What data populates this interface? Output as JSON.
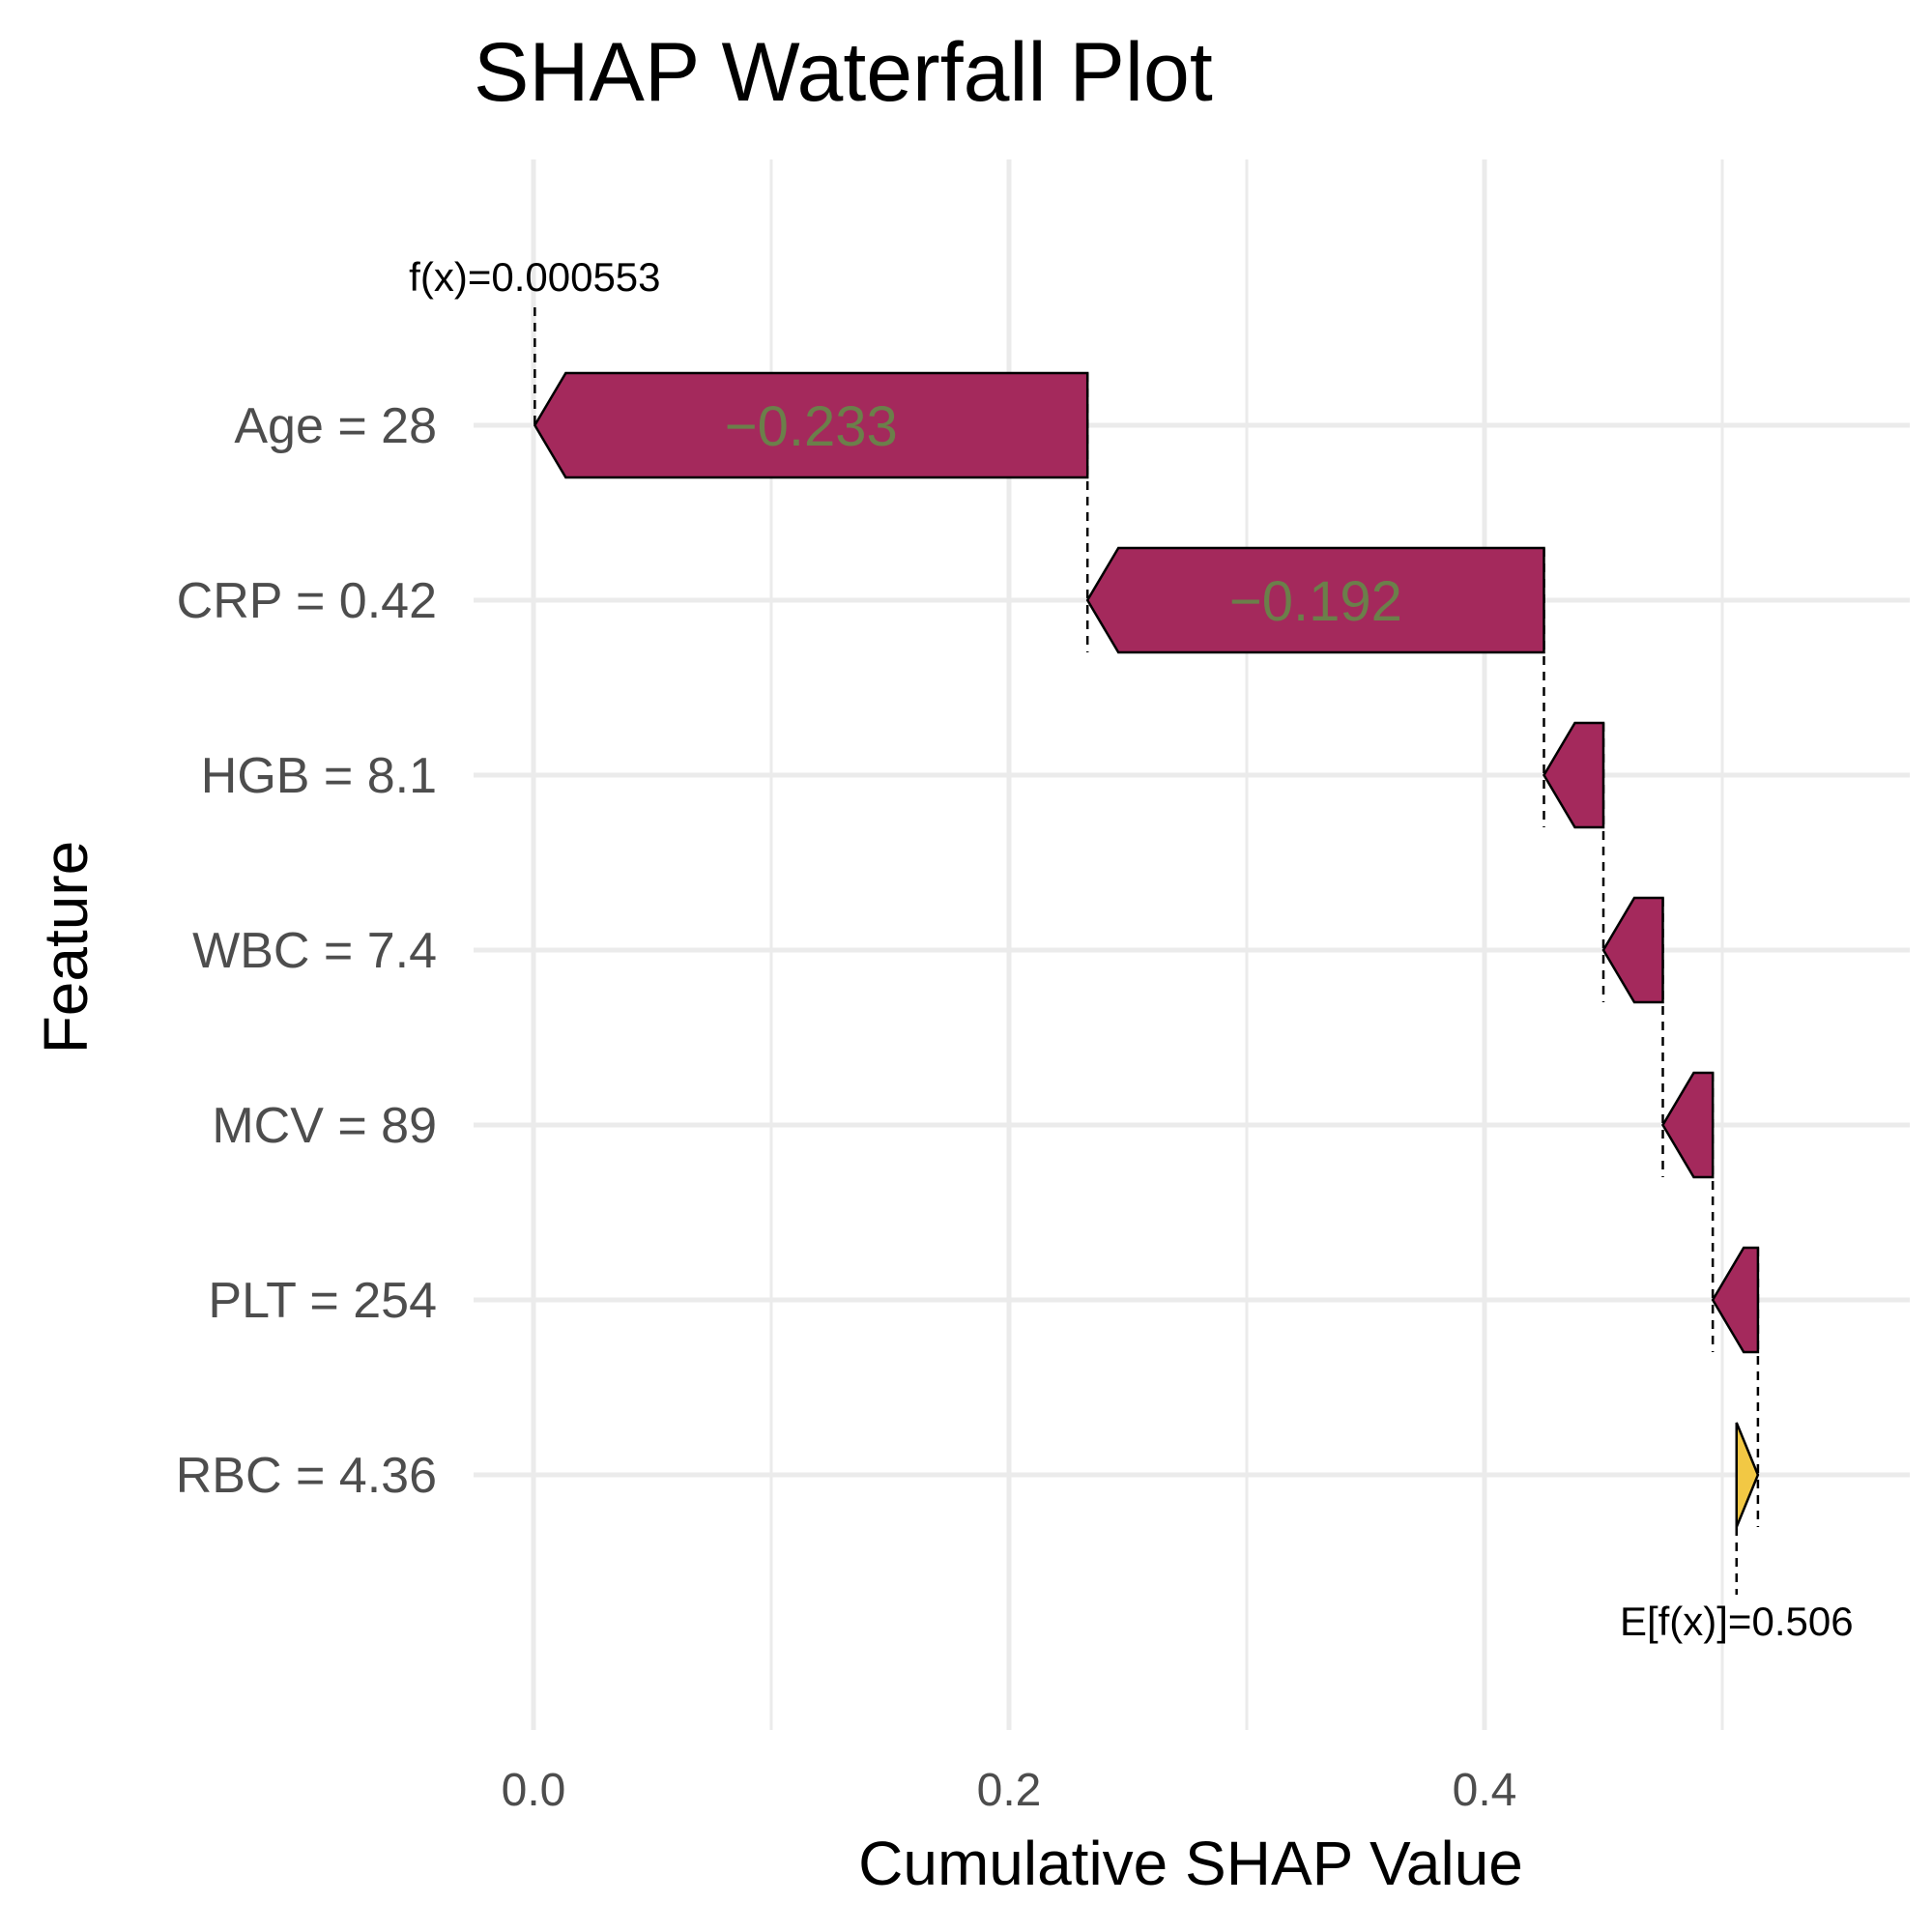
{
  "chart_data": {
    "type": "waterfall",
    "title": "SHAP Waterfall Plot",
    "xlabel": "Cumulative SHAP Value",
    "ylabel": "Feature",
    "xlim": [
      0.0,
      0.576
    ],
    "x_ticks": [
      {
        "value": 0.0,
        "label": "0.0"
      },
      {
        "value": 0.2,
        "label": "0.2"
      },
      {
        "value": 0.4,
        "label": "0.4"
      }
    ],
    "minor_grid": [
      0.1,
      0.3,
      0.5
    ],
    "grid": true,
    "base_value": 0.506,
    "prediction": 0.000553,
    "annotations": {
      "prediction_label": "f(x)=0.000553",
      "base_label": "E[f(x)]=0.506"
    },
    "features": [
      {
        "label": "Age = 28",
        "start": 0.233,
        "end": 0.000553,
        "shap": -0.233,
        "value_label": "−0.233"
      },
      {
        "label": "CRP = 0.42",
        "start": 0.425,
        "end": 0.233,
        "shap": -0.192,
        "value_label": "−0.192"
      },
      {
        "label": "HGB = 8.1",
        "start": 0.45,
        "end": 0.425,
        "shap": -0.025,
        "value_label": ""
      },
      {
        "label": "WBC = 7.4",
        "start": 0.475,
        "end": 0.45,
        "shap": -0.025,
        "value_label": ""
      },
      {
        "label": "MCV = 89",
        "start": 0.496,
        "end": 0.475,
        "shap": -0.021,
        "value_label": ""
      },
      {
        "label": "PLT = 254",
        "start": 0.515,
        "end": 0.496,
        "shap": -0.019,
        "value_label": ""
      },
      {
        "label": "RBC = 4.36",
        "start": 0.506,
        "end": 0.515,
        "shap": 0.009,
        "value_label": ""
      }
    ],
    "colors": {
      "negative": "#a4295c",
      "positive": "#f2c844"
    }
  }
}
